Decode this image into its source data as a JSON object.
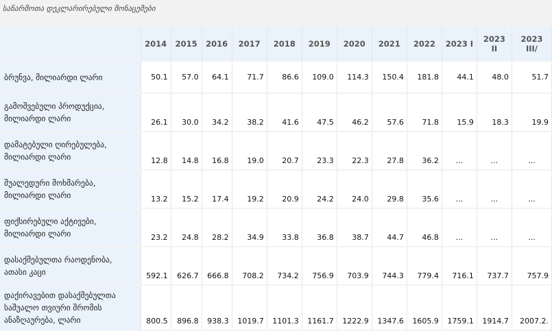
{
  "caption": "სანარმოთა დეკლარირებული მონაცემები",
  "columns": [
    "2014",
    "2015",
    "2016",
    "2017",
    "2018",
    "2019",
    "2020",
    "2021",
    "2022",
    "2023 I",
    "2023 II",
    "2023 III/"
  ],
  "rows": [
    {
      "label": "ბრუნვა, მილიარდი ლარი",
      "values": [
        "50.1",
        "57.0",
        "64.1",
        "71.7",
        "86.6",
        "109.0",
        "114.3",
        "150.4",
        "181.8",
        "44.1",
        "48.0",
        "51.7"
      ]
    },
    {
      "label": "გამოშვებული პროდუქცია, მილიარდი ლარი",
      "values": [
        "26.1",
        "30.0",
        "34.2",
        "38.2",
        "41.6",
        "47.5",
        "46.2",
        "57.6",
        "71.8",
        "15.9",
        "18.3",
        "19.9"
      ]
    },
    {
      "label": "დამატებული ღირებულება, მილიარდი ლარი",
      "values": [
        "12.8",
        "14.8",
        "16.8",
        "19.0",
        "20.7",
        "23.3",
        "22.3",
        "27.8",
        "36.2",
        "...",
        "...",
        "..."
      ]
    },
    {
      "label": "შუალედური მოხმარება, მილიარდი ლარი",
      "values": [
        "13.2",
        "15.2",
        "17.4",
        "19.2",
        "20.9",
        "24.2",
        "24.0",
        "29.8",
        "35.6",
        "...",
        "...",
        "..."
      ]
    },
    {
      "label": "ფიქსირებული აქტივები, მილიარდი ლარი",
      "values": [
        "23.2",
        "24.8",
        "28.2",
        "34.9",
        "33.8",
        "36.8",
        "38.7",
        "44.7",
        "46.8",
        "...",
        "...",
        "..."
      ]
    },
    {
      "label": "დასაქმებულთა რაოდენობა, ათასი კაცი",
      "values": [
        "592.1",
        "626.7",
        "666.8",
        "708.2",
        "734.2",
        "756.9",
        "703.9",
        "744.3",
        "779.4",
        "716.1",
        "737.7",
        "757.9"
      ]
    },
    {
      "label": "დაქირავებით დასაქმებულთა საშუალო თვიური შრომის ანაზღაურება, ლარი",
      "values": [
        "800.5",
        "896.8",
        "938.3",
        "1019.7",
        "1101.3",
        "1161.7",
        "1222.9",
        "1347.6",
        "1605.9",
        "1759.1",
        "1914.7",
        "2007.2."
      ]
    }
  ]
}
